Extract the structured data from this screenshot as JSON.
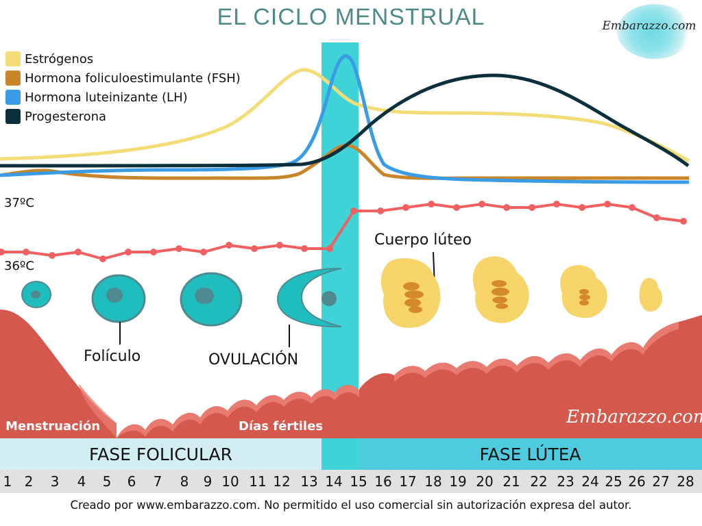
{
  "title": "EL CICLO MENSTRUAL",
  "logo": {
    "text": "Embarazzo.com"
  },
  "watermark": "Embarazzo.com",
  "legend": [
    {
      "label": "Estrógenos",
      "color": "#f3dd78"
    },
    {
      "label": "Hormona foliculoestimulante (FSH)",
      "color": "#c9852a"
    },
    {
      "label": "Hormona luteinizante (LH)",
      "color": "#3a9be6"
    },
    {
      "label": "Progesterona",
      "color": "#0c2f3c"
    }
  ],
  "temperature": {
    "label_high": "37ºC",
    "label_low": "36ºC",
    "color": "#f06060",
    "days": [
      1,
      2,
      3,
      4,
      5,
      6,
      7,
      8,
      9,
      10,
      11,
      12,
      13,
      14,
      15,
      16,
      17,
      18,
      19,
      20,
      21,
      22,
      23,
      24,
      25,
      26,
      27,
      28
    ],
    "values": [
      36.2,
      36.2,
      36.15,
      36.2,
      36.1,
      36.2,
      36.2,
      36.25,
      36.2,
      36.3,
      36.25,
      36.3,
      36.25,
      36.25,
      36.8,
      36.8,
      36.85,
      36.9,
      36.85,
      36.9,
      36.85,
      36.85,
      36.9,
      36.85,
      36.9,
      36.85,
      36.7,
      36.65
    ]
  },
  "labels": {
    "foliculo": "Folículo",
    "ovulacion": "OVULACIÓN",
    "cuerpo_luteo": "Cuerpo lúteo",
    "menstruacion": "Menstruación",
    "dias_fertiles": "Días fértiles"
  },
  "phases": {
    "follicular": "FASE FOLICULAR",
    "luteal": "FASE LÚTEA"
  },
  "days": [
    "1",
    "2",
    "3",
    "4",
    "5",
    "6",
    "7",
    "8",
    "9",
    "10",
    "11",
    "12",
    "13",
    "14",
    "15",
    "16",
    "17",
    "18",
    "19",
    "20",
    "21",
    "22",
    "23",
    "24",
    "25",
    "26",
    "27",
    "28"
  ],
  "footer": "Creado por www.embarazzo.com. No permitido el uso comercial sin autorización expresa del autor.",
  "colors": {
    "fertile_band": "#3fd3d8",
    "follicular_bar": "#d2eef2",
    "luteal_bar": "#4fcbe0",
    "endometrium": "#d4584b",
    "endometrium_light": "#e87a70",
    "follicle_fill": "#1fbdbd",
    "follicle_nucleus": "#4f8a90",
    "corpus_luteum": "#f6d46a",
    "corpus_luteum_core": "#d48a2a"
  }
}
